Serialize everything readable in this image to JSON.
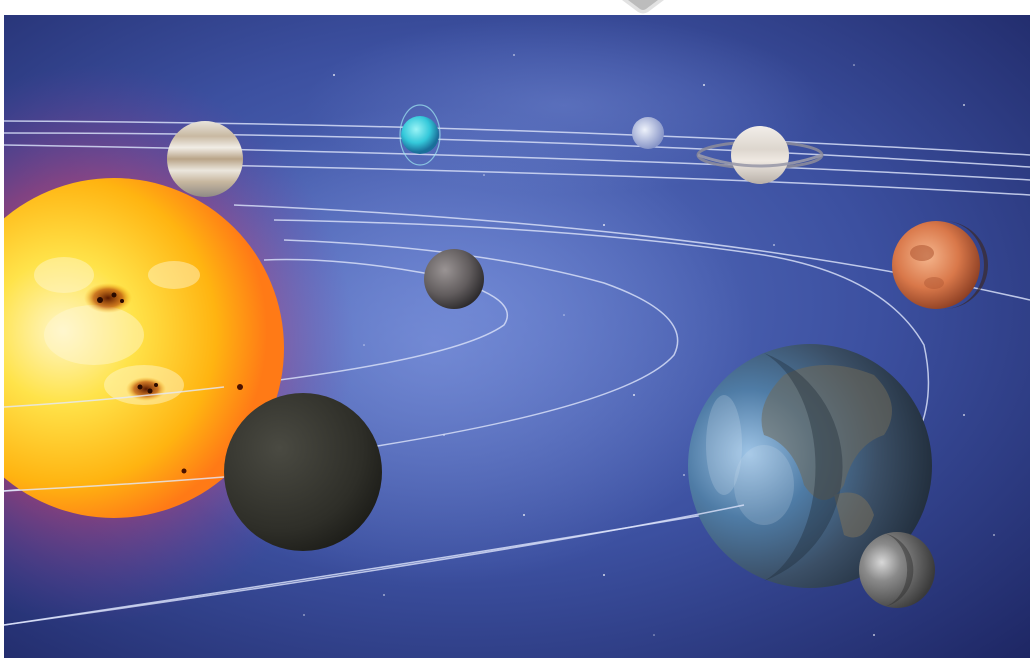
{
  "scene": {
    "subject": "solar-system",
    "bodies": [
      {
        "name": "sun",
        "color": "#ffd21a"
      },
      {
        "name": "jupiter",
        "color": "#d8d2c8"
      },
      {
        "name": "uranus",
        "color": "#3fd3e0"
      },
      {
        "name": "neptune",
        "color": "#c8d4ea"
      },
      {
        "name": "saturn",
        "color": "#e6e2dc"
      },
      {
        "name": "mars",
        "color": "#e0875a"
      },
      {
        "name": "mercury",
        "color": "#6e6a6a"
      },
      {
        "name": "venus",
        "color": "#3a3a34"
      },
      {
        "name": "earth",
        "color": "#4f6e8c"
      },
      {
        "name": "moon",
        "color": "#7a7a7a"
      }
    ],
    "colors": {
      "space_dark": "#1f2a6a",
      "space_light": "#4f67b6",
      "orbit_line": "#d6def7"
    }
  }
}
